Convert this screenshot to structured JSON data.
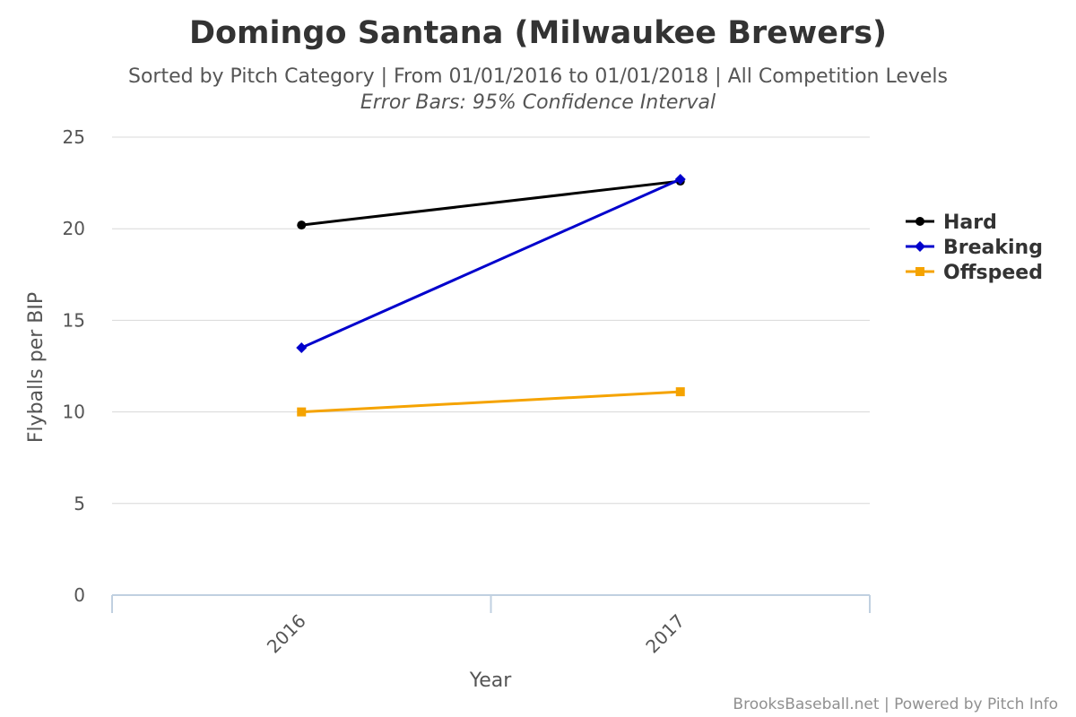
{
  "chart_data": {
    "type": "line",
    "title": "Domingo Santana (Milwaukee Brewers)",
    "subtitle": "Sorted by Pitch Category | From 01/01/2016 to 01/01/2018 | All Competition Levels",
    "subtitle2": "Error Bars: 95% Confidence Interval",
    "xlabel": "Year",
    "ylabel": "Flyballs per BIP",
    "categories": [
      "2016",
      "2017"
    ],
    "ylim": [
      0,
      25
    ],
    "yticks": [
      "0",
      "5",
      "10",
      "15",
      "20",
      "25"
    ],
    "grid": true,
    "legend_position": "right",
    "series": [
      {
        "name": "Hard",
        "values": [
          20.2,
          22.6
        ],
        "color": "#000000",
        "marker": "circle"
      },
      {
        "name": "Breaking",
        "values": [
          13.5,
          22.7
        ],
        "color": "#0000cc",
        "marker": "diamond"
      },
      {
        "name": "Offspeed",
        "values": [
          10.0,
          11.1
        ],
        "color": "#f5a300",
        "marker": "square"
      }
    ],
    "credits": "BrooksBaseball.net | Powered by Pitch Info"
  }
}
